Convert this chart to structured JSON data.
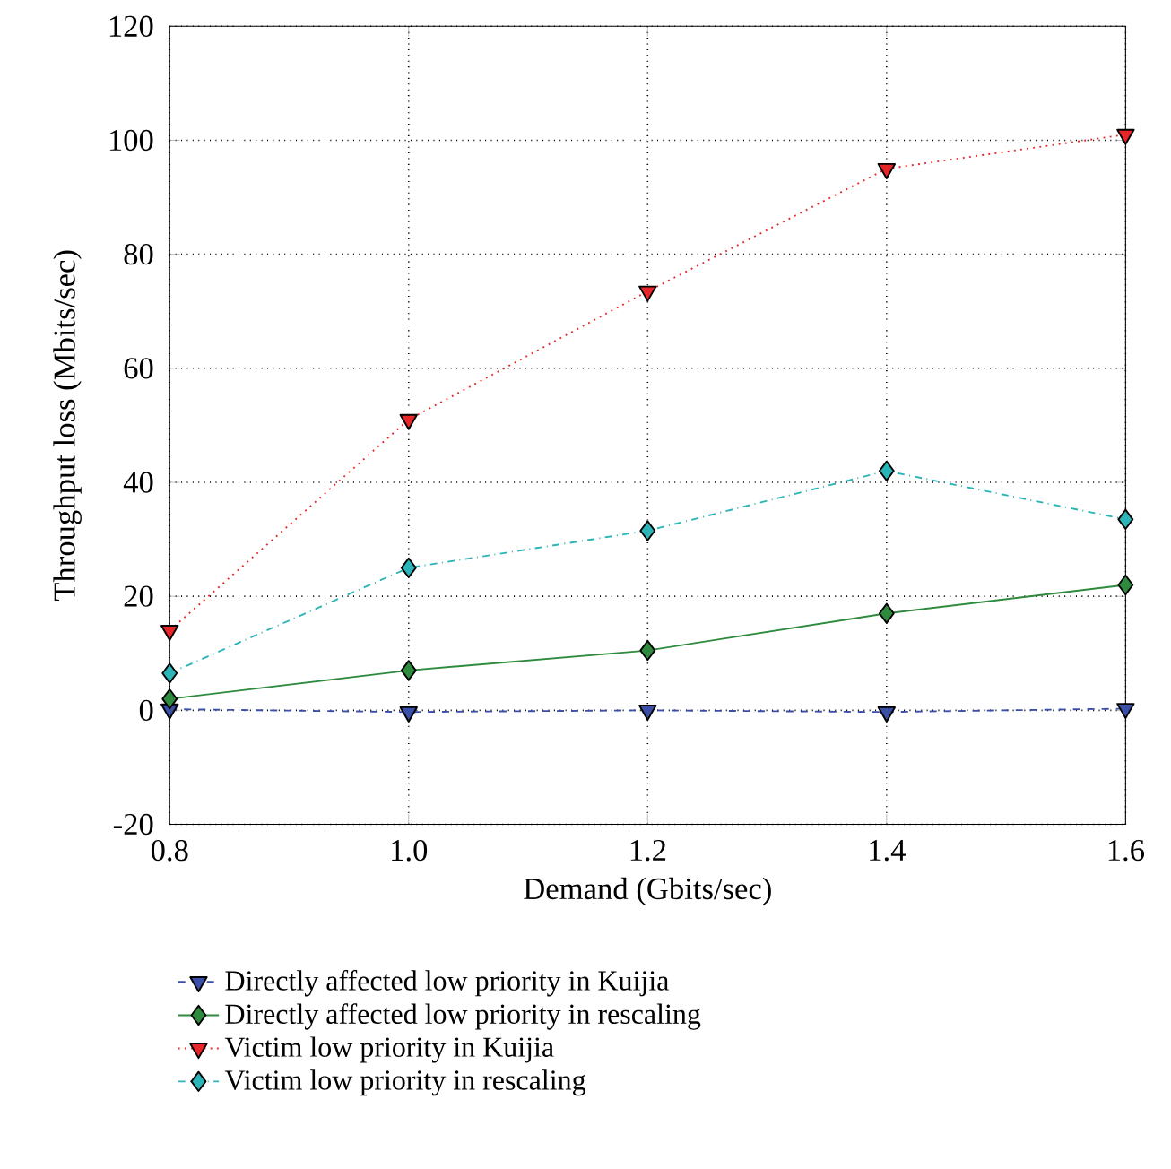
{
  "chart_data": {
    "type": "line",
    "xlabel": "Demand (Gbits/sec)",
    "ylabel": "Throughput loss (Mbits/sec)",
    "x": [
      0.8,
      1.0,
      1.2,
      1.4,
      1.6
    ],
    "series": [
      {
        "name": "Directly affected low priority in Kuijia",
        "color": "#3a4fa8",
        "marker": "triangle",
        "line_style": "dashed",
        "values": [
          0.2,
          -0.3,
          0,
          -0.3,
          0.3
        ]
      },
      {
        "name": "Directly affected low priority in rescaling",
        "color": "#2e8b3e",
        "marker": "diamond",
        "line_style": "solid",
        "values": [
          2,
          7,
          10.5,
          17,
          22
        ]
      },
      {
        "name": "Victim low priority in Kuijia",
        "color": "#e8262a",
        "marker": "triangle",
        "line_style": "dotted",
        "values": [
          14,
          51,
          73.5,
          95,
          101
        ]
      },
      {
        "name": "Victim low priority in rescaling",
        "color": "#2bb5b8",
        "marker": "diamond",
        "line_style": "dashdot",
        "values": [
          6.5,
          25,
          31.5,
          42,
          33.5
        ]
      }
    ],
    "xlim": [
      0.8,
      1.6
    ],
    "ylim": [
      -20,
      120
    ],
    "xticks": [
      0.8,
      {
        "value": 1.0,
        "label": "1.0"
      },
      1.2,
      1.4,
      1.6
    ],
    "yticks": [
      -20,
      0,
      20,
      40,
      60,
      80,
      100,
      120
    ],
    "grid": true,
    "legend": "bottom"
  }
}
